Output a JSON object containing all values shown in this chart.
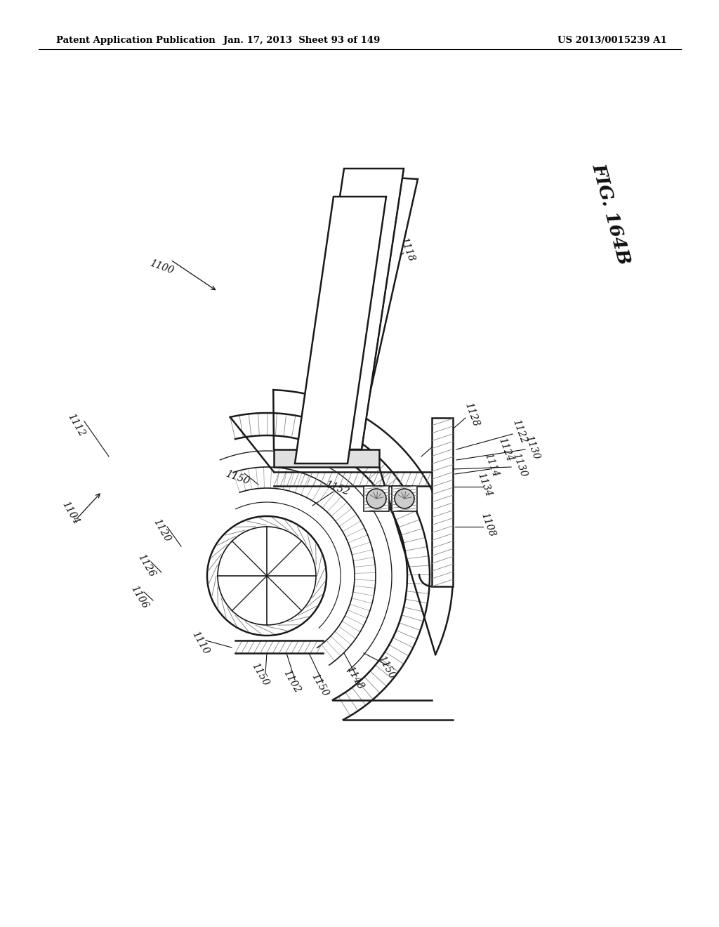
{
  "header_left": "Patent Application Publication",
  "header_mid": "Jan. 17, 2013  Sheet 93 of 149",
  "header_right": "US 2013/0015239 A1",
  "fig_label": "FIG. 164B",
  "bg_color": "#ffffff",
  "line_color": "#1a1a1a"
}
